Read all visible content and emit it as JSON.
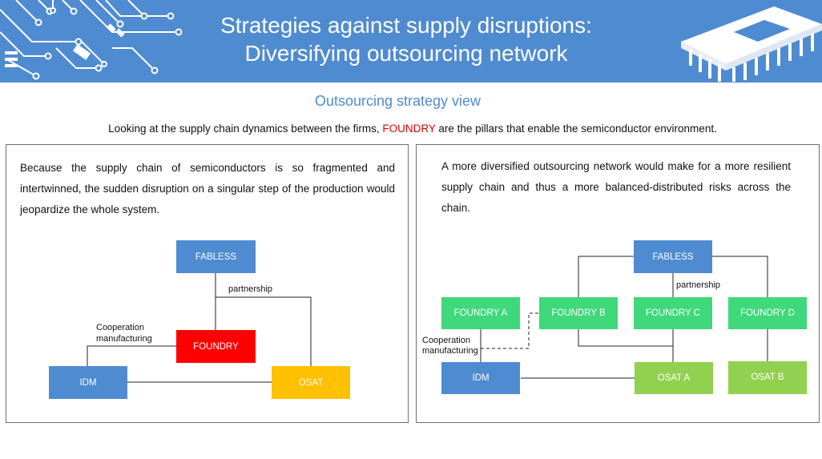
{
  "header": {
    "title_line1": "Strategies against supply disruptions:",
    "title_line2": "Diversifying outsourcing network"
  },
  "subtitle": "Outsourcing strategy view",
  "intro": {
    "before": "Looking at the supply chain dynamics between the firms, ",
    "highlight": "FOUNDRY",
    "after": " are the pillars that enable the semiconductor environment."
  },
  "left_panel": {
    "text": "Because the supply chain of semiconductors is so fragmented and intertwinned, the sudden disruption on a singular step of the production would jeopardize the whole system.",
    "diagram": {
      "fabless": "FABLESS",
      "foundry": "FOUNDRY",
      "idm": "IDM",
      "osat": "OSAT",
      "partnership_label": "partnership",
      "cooperation_line1": "Cooperation",
      "cooperation_line2": "manufacturing"
    }
  },
  "right_panel": {
    "text": "A more diversified outsourcing network would make for a more resilient supply chain and thus a more balanced-distributed risks across the chain.",
    "diagram": {
      "fabless": "FABLESS",
      "foundry_a": "FOUNDRY A",
      "foundry_b": "FOUNDRY B",
      "foundry_c": "FOUNDRY C",
      "foundry_d": "FOUNDRY D",
      "idm": "IDM",
      "osat_a": "OSAT A",
      "osat_b": "OSAT B",
      "partnership_label": "partnership",
      "cooperation_line1": "Cooperation",
      "cooperation_line2": "manufacturing"
    }
  },
  "colors": {
    "header_bg": "#4f8bd0",
    "blue_box": "#4f8bd0",
    "red_box": "#ff0000",
    "yellow_box": "#ffc000",
    "green_box": "#3fd87a",
    "light_green_box": "#92d050",
    "highlight_text": "#e00000"
  }
}
